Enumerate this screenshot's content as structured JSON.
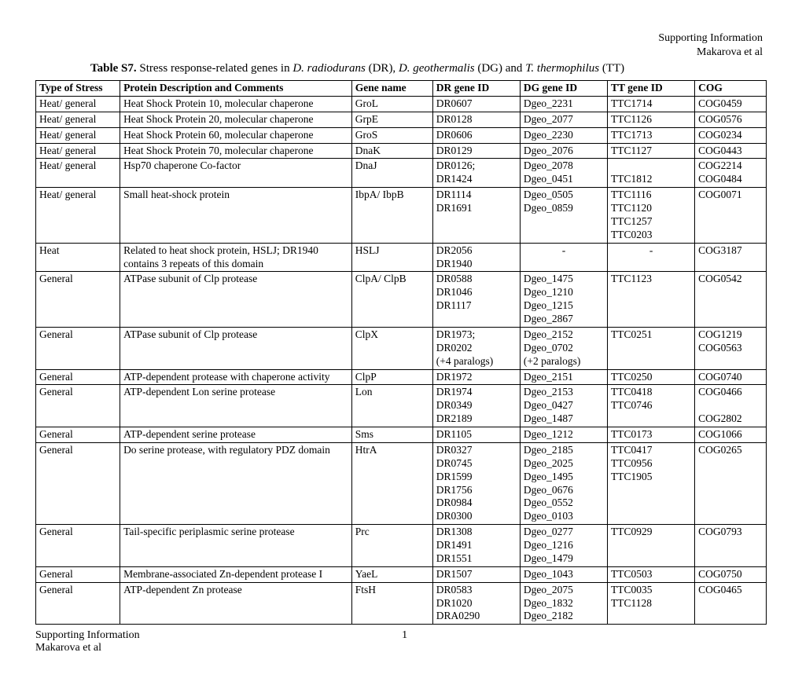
{
  "header": {
    "supporting": "Supporting Information",
    "authors": "Makarova et al"
  },
  "title": {
    "label": "Table S7.",
    "text_a": " Stress response-related genes in ",
    "sp1": "D. radiodurans",
    "abbr1": " (DR), ",
    "sp2": "D. geothermalis",
    "abbr2": " (DG) and ",
    "sp3": "T. thermophilus",
    "abbr3": " (TT)"
  },
  "columns": {
    "c0": "Type of Stress",
    "c1": "Protein Description and Comments",
    "c2": "Gene name",
    "c3": "DR gene  ID",
    "c4": "DG gene  ID",
    "c5": "TT gene  ID",
    "c6": "COG"
  },
  "rows": {
    "r0": {
      "type": "Heat/ general",
      "desc": "Heat Shock Protein 10, molecular chaperone",
      "gene": "GroL",
      "dr": "DR0607",
      "dg": "Dgeo_2231",
      "tt": "TTC1714",
      "cog": "COG0459"
    },
    "r1": {
      "type": "Heat/ general",
      "desc": "Heat Shock Protein 20, molecular chaperone",
      "gene": "GrpE",
      "dr": "DR0128",
      "dg": "Dgeo_2077",
      "tt": "TTC1126",
      "cog": "COG0576"
    },
    "r2": {
      "type": "Heat/ general",
      "desc": "Heat Shock Protein 60, molecular chaperone",
      "gene": "GroS",
      "dr": "DR0606",
      "dg": "Dgeo_2230",
      "tt": "TTC1713",
      "cog": "COG0234"
    },
    "r3": {
      "type": "Heat/ general",
      "desc": "Heat Shock Protein 70, molecular chaperone",
      "gene": "DnaK",
      "dr": "DR0129",
      "dg": "Dgeo_2076",
      "tt": "TTC1127",
      "cog": "COG0443"
    },
    "r4": {
      "type": "Heat/ general",
      "desc": "Hsp70 chaperone Co-factor",
      "gene": "DnaJ",
      "dr": "DR0126;\nDR1424",
      "dg": "Dgeo_2078\nDgeo_0451",
      "tt": "\nTTC1812",
      "cog": "COG2214\nCOG0484"
    },
    "r5": {
      "type": "Heat/ general",
      "desc": "Small heat-shock protein",
      "gene": "IbpA/ IbpB",
      "dr": "DR1114\nDR1691",
      "dg": "Dgeo_0505\nDgeo_0859",
      "tt": "TTC1116\nTTC1120\nTTC1257\nTTC0203",
      "cog": "COG0071"
    },
    "r6": {
      "type": "Heat",
      "desc": "Related to heat shock protein, HSLJ; DR1940 contains 3 repeats of this domain",
      "gene": "HSLJ",
      "dr": "DR2056\nDR1940",
      "dg": "-",
      "tt": "-",
      "cog": "COG3187"
    },
    "r7": {
      "type": "General",
      "desc": "ATPase subunit of Clp protease",
      "gene": "ClpA/ ClpB",
      "dr": "DR0588\nDR1046\nDR1117",
      "dg": "Dgeo_1475\nDgeo_1210\nDgeo_1215\nDgeo_2867",
      "tt": "TTC1123",
      "cog": "COG0542"
    },
    "r8": {
      "type": "General",
      "desc": "ATPase subunit of Clp protease",
      "gene": "ClpX",
      "dr": "DR1973;\nDR0202\n(+4 paralogs)",
      "dg": "Dgeo_2152\nDgeo_0702\n(+2 paralogs)",
      "tt": "TTC0251",
      "cog": "COG1219\nCOG0563"
    },
    "r9": {
      "type": "General",
      "desc": "ATP-dependent protease with chaperone activity",
      "gene": "ClpP",
      "dr": "DR1972",
      "dg": "Dgeo_2151",
      "tt": "TTC0250",
      "cog": "COG0740"
    },
    "r10": {
      "type": "General",
      "desc": "ATP-dependent Lon serine protease",
      "gene": "Lon",
      "dr": "DR1974\nDR0349\nDR2189",
      "dg": "Dgeo_2153\nDgeo_0427\nDgeo_1487",
      "tt": "TTC0418\nTTC0746",
      "cog": "COG0466\n\nCOG2802"
    },
    "r11": {
      "type": "General",
      "desc": "ATP-dependent serine protease",
      "gene": "Sms",
      "dr": "DR1105",
      "dg": "Dgeo_1212",
      "tt": "TTC0173",
      "cog": "COG1066"
    },
    "r12": {
      "type": "General",
      "desc": "Do serine protease, with regulatory PDZ domain",
      "gene": "HtrA",
      "dr": "DR0327\nDR0745\nDR1599\nDR1756\nDR0984\nDR0300",
      "dg": "Dgeo_2185\nDgeo_2025\nDgeo_1495\nDgeo_0676\nDgeo_0552\nDgeo_0103",
      "tt": "TTC0417\nTTC0956\nTTC1905",
      "cog": "COG0265"
    },
    "r13": {
      "type": "General",
      "desc": "Tail-specific periplasmic serine protease",
      "gene": "Prc",
      "dr": "DR1308\nDR1491\nDR1551",
      "dg": "Dgeo_0277\nDgeo_1216\nDgeo_1479",
      "tt": "TTC0929",
      "cog": "COG0793"
    },
    "r14": {
      "type": "General",
      "desc": "Membrane-associated Zn-dependent protease I",
      "gene": "YaeL",
      "dr": "DR1507",
      "dg": "Dgeo_1043",
      "tt": "TTC0503",
      "cog": "COG0750"
    },
    "r15": {
      "type": "General",
      "desc": "ATP-dependent Zn protease",
      "gene": "FtsH",
      "dr": "DR0583\nDR1020\nDRA0290",
      "dg": "Dgeo_2075\nDgeo_1832\nDgeo_2182",
      "tt": "TTC0035\nTTC1128",
      "cog": "COG0465"
    }
  },
  "footer": {
    "supporting": "Supporting Information",
    "authors": "Makarova et al",
    "page": "1"
  }
}
